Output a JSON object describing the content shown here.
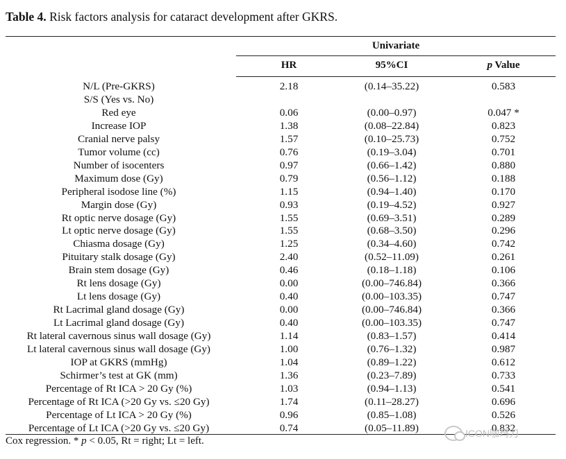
{
  "caption": {
    "label": "Table 4.",
    "text": " Risk factors analysis for cataract development after GKRS."
  },
  "group_header": "Univariate",
  "columns": {
    "hr": "HR",
    "ci": "95%CI",
    "p_italic": "p",
    "p_rest": " Value"
  },
  "rows": [
    {
      "factor": "N/L (Pre-GKRS)",
      "hr": "2.18",
      "ci": "(0.14–35.22)",
      "p": "0.583"
    },
    {
      "factor": "S/S (Yes vs. No)",
      "hr": "",
      "ci": "",
      "p": ""
    },
    {
      "factor": "Red eye",
      "hr": "0.06",
      "ci": "(0.00–0.97)",
      "p": "0.047 *"
    },
    {
      "factor": "Increase IOP",
      "hr": "1.38",
      "ci": "(0.08–22.84)",
      "p": "0.823"
    },
    {
      "factor": "Cranial nerve palsy",
      "hr": "1.57",
      "ci": "(0.10–25.73)",
      "p": "0.752"
    },
    {
      "factor": "Tumor volume (cc)",
      "hr": "0.76",
      "ci": "(0.19–3.04)",
      "p": "0.701"
    },
    {
      "factor": "Number of isocenters",
      "hr": "0.97",
      "ci": "(0.66–1.42)",
      "p": "0.880"
    },
    {
      "factor": "Maximum dose (Gy)",
      "hr": "0.79",
      "ci": "(0.56–1.12)",
      "p": "0.188"
    },
    {
      "factor": "Peripheral isodose line (%)",
      "hr": "1.15",
      "ci": "(0.94–1.40)",
      "p": "0.170"
    },
    {
      "factor": "Margin dose (Gy)",
      "hr": "0.93",
      "ci": "(0.19–4.52)",
      "p": "0.927"
    },
    {
      "factor": "Rt optic nerve dosage (Gy)",
      "hr": "1.55",
      "ci": "(0.69–3.51)",
      "p": "0.289"
    },
    {
      "factor": "Lt optic nerve dosage (Gy)",
      "hr": "1.55",
      "ci": "(0.68–3.50)",
      "p": "0.296"
    },
    {
      "factor": "Chiasma dosage (Gy)",
      "hr": "1.25",
      "ci": "(0.34–4.60)",
      "p": "0.742"
    },
    {
      "factor": "Pituitary stalk dosage (Gy)",
      "hr": "2.40",
      "ci": "(0.52–11.09)",
      "p": "0.261"
    },
    {
      "factor": "Brain stem dosage (Gy)",
      "hr": "0.46",
      "ci": "(0.18–1.18)",
      "p": "0.106"
    },
    {
      "factor": "Rt lens dosage (Gy)",
      "hr": "0.00",
      "ci": "(0.00–746.84)",
      "p": "0.366"
    },
    {
      "factor": "Lt lens dosage (Gy)",
      "hr": "0.40",
      "ci": "(0.00–103.35)",
      "p": "0.747"
    },
    {
      "factor": "Rt Lacrimal gland dosage (Gy)",
      "hr": "0.00",
      "ci": "(0.00–746.84)",
      "p": "0.366"
    },
    {
      "factor": "Lt Lacrimal gland dosage (Gy)",
      "hr": "0.40",
      "ci": "(0.00–103.35)",
      "p": "0.747"
    },
    {
      "factor": "Rt lateral cavernous sinus wall dosage (Gy)",
      "hr": "1.14",
      "ci": "(0.83–1.57)",
      "p": "0.414"
    },
    {
      "factor": "Lt lateral cavernous sinus wall dosage (Gy)",
      "hr": "1.00",
      "ci": "(0.76–1.32)",
      "p": "0.987"
    },
    {
      "factor": "IOP at GKRS (mmHg)",
      "hr": "1.04",
      "ci": "(0.89–1.22)",
      "p": "0.612"
    },
    {
      "factor": "Schirmer’s test at GK (mm)",
      "hr": "1.36",
      "ci": "(0.23–7.89)",
      "p": "0.733"
    },
    {
      "factor": "Percentage of Rt ICA > 20 Gy (%)",
      "hr": "1.03",
      "ci": "(0.94–1.13)",
      "p": "0.541"
    },
    {
      "factor": "Percentage of Rt ICA (>20 Gy vs. ≤20 Gy)",
      "hr": "1.74",
      "ci": "(0.11–28.27)",
      "p": "0.696"
    },
    {
      "factor": "Percentage of Lt ICA > 20 Gy (%)",
      "hr": "0.96",
      "ci": "(0.85–1.08)",
      "p": "0.526"
    },
    {
      "factor": "Percentage of Lt ICA (>20 Gy vs. ≤20 Gy)",
      "hr": "0.74",
      "ci": "(0.05–11.89)",
      "p": "0.832"
    }
  ],
  "footnote": {
    "a": "Cox regression. * ",
    "p": "p",
    "b": " < 0.05, Rt = right; Lt = left."
  },
  "watermark": "ICON咖玛刀"
}
